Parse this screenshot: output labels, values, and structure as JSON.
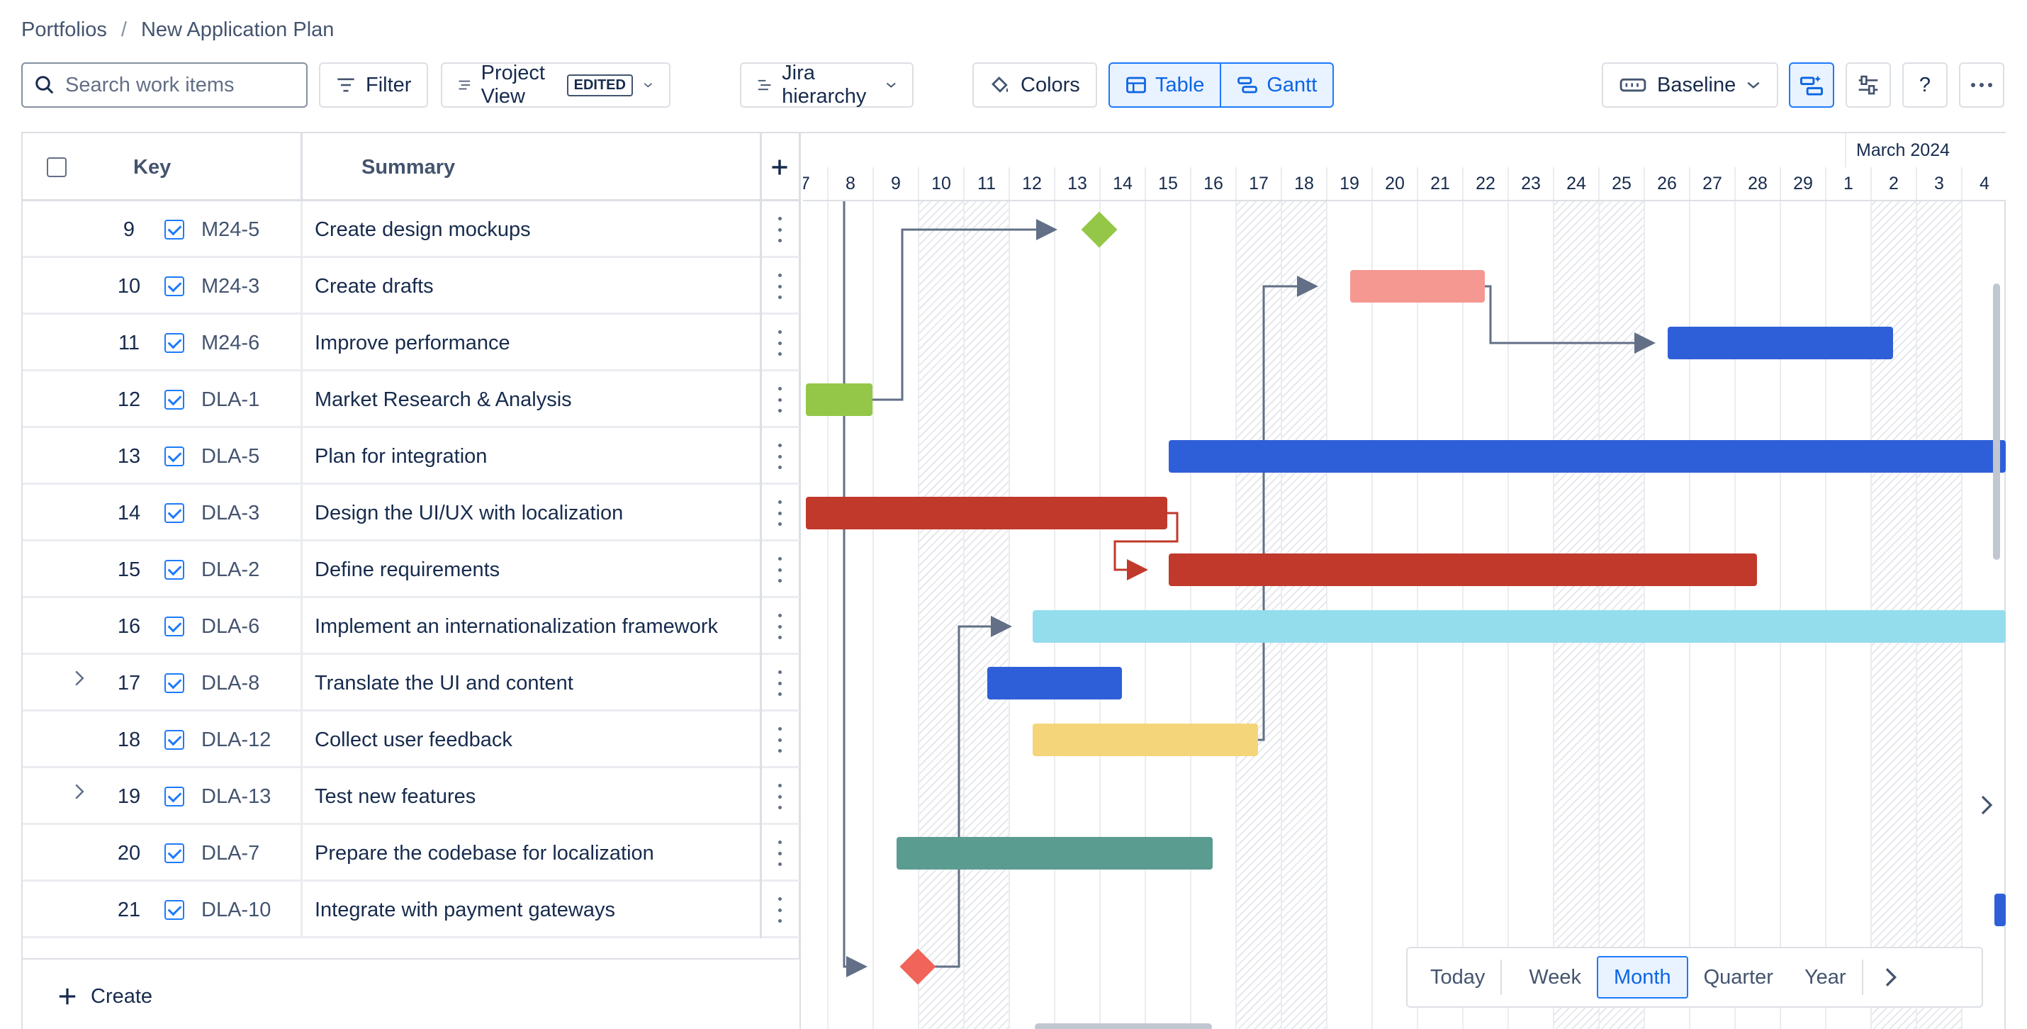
{
  "breadcrumb": {
    "root": "Portfolios",
    "separator": "/",
    "current": "New Application Plan"
  },
  "toolbar": {
    "search_placeholder": "Search work items",
    "filter": "Filter",
    "project_view": "Project View",
    "edited_badge": "EDITED",
    "hierarchy": "Jira hierarchy",
    "colors": "Colors",
    "table": "Table",
    "gantt": "Gantt",
    "baseline": "Baseline",
    "help": "?"
  },
  "table": {
    "headers": {
      "key": "Key",
      "summary": "Summary"
    },
    "rows": [
      {
        "num": "9",
        "key": "M24-5",
        "summary": "Create design mockups",
        "expandable": false
      },
      {
        "num": "10",
        "key": "M24-3",
        "summary": "Create drafts",
        "expandable": false
      },
      {
        "num": "11",
        "key": "M24-6",
        "summary": "Improve performance",
        "expandable": false
      },
      {
        "num": "12",
        "key": "DLA-1",
        "summary": "Market Research & Analysis",
        "expandable": false
      },
      {
        "num": "13",
        "key": "DLA-5",
        "summary": "Plan for integration",
        "expandable": false
      },
      {
        "num": "14",
        "key": "DLA-3",
        "summary": "Design the UI/UX with localization",
        "expandable": false
      },
      {
        "num": "15",
        "key": "DLA-2",
        "summary": "Define requirements",
        "expandable": false
      },
      {
        "num": "16",
        "key": "DLA-6",
        "summary": "Implement an internationalization framework",
        "expandable": false
      },
      {
        "num": "17",
        "key": "DLA-8",
        "summary": "Translate the UI and content",
        "expandable": true
      },
      {
        "num": "18",
        "key": "DLA-12",
        "summary": "Collect user feedback",
        "expandable": false
      },
      {
        "num": "19",
        "key": "DLA-13",
        "summary": "Test new features",
        "expandable": true
      },
      {
        "num": "20",
        "key": "DLA-7",
        "summary": "Prepare the codebase for localization",
        "expandable": false
      },
      {
        "num": "21",
        "key": "DLA-10",
        "summary": "Integrate with payment gateways",
        "expandable": false
      }
    ],
    "create": "Create"
  },
  "gantt": {
    "month_label": "March 2024",
    "days": [
      "7",
      "8",
      "9",
      "10",
      "11",
      "12",
      "13",
      "14",
      "15",
      "16",
      "17",
      "18",
      "19",
      "20",
      "21",
      "22",
      "23",
      "24",
      "25",
      "26",
      "27",
      "28",
      "29",
      "1",
      "2",
      "3",
      "4"
    ],
    "weekend_days": [
      "10",
      "11",
      "17",
      "18",
      "24",
      "25",
      "2",
      "3"
    ],
    "colors": {
      "green": "#94c748",
      "salmon": "#f59892",
      "blue": "#2f5fd8",
      "red": "#c0392b",
      "cyan": "#94dded",
      "yellow": "#f5d57a",
      "teal": "#5b9c91",
      "coral": "#f0645a"
    }
  },
  "zoom": {
    "today": "Today",
    "week": "Week",
    "month": "Month",
    "quarter": "Quarter",
    "year": "Year",
    "selected": "Month"
  }
}
